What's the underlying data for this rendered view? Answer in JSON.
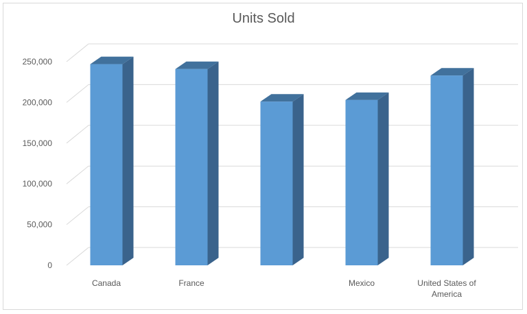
{
  "chart_data": {
    "type": "bar",
    "title": "Units Sold",
    "xlabel": "",
    "ylabel": "",
    "categories": [
      "Canada",
      "France",
      "",
      "Mexico",
      "United States of America"
    ],
    "category_lines": [
      [
        "Canada"
      ],
      [
        "France"
      ],
      [
        ""
      ],
      [
        "Mexico"
      ],
      [
        "United States of",
        "America"
      ]
    ],
    "series": [
      {
        "values": [
          247000,
          241000,
          201000,
          203000,
          233000
        ]
      }
    ],
    "ylim": [
      0,
      250000
    ],
    "yticks": [
      0,
      50000,
      100000,
      150000,
      200000,
      250000
    ],
    "ytick_labels": [
      "0",
      "50,000",
      "100,000",
      "150,000",
      "200,000",
      "250,000"
    ],
    "grid": true,
    "legend": "none",
    "style": "3d-column",
    "colors": {
      "bar_front": "#5b9bd5",
      "bar_top": "#41719c",
      "bar_side": "#3a638c",
      "grid": "#d9d9d9",
      "text": "#595959"
    }
  }
}
